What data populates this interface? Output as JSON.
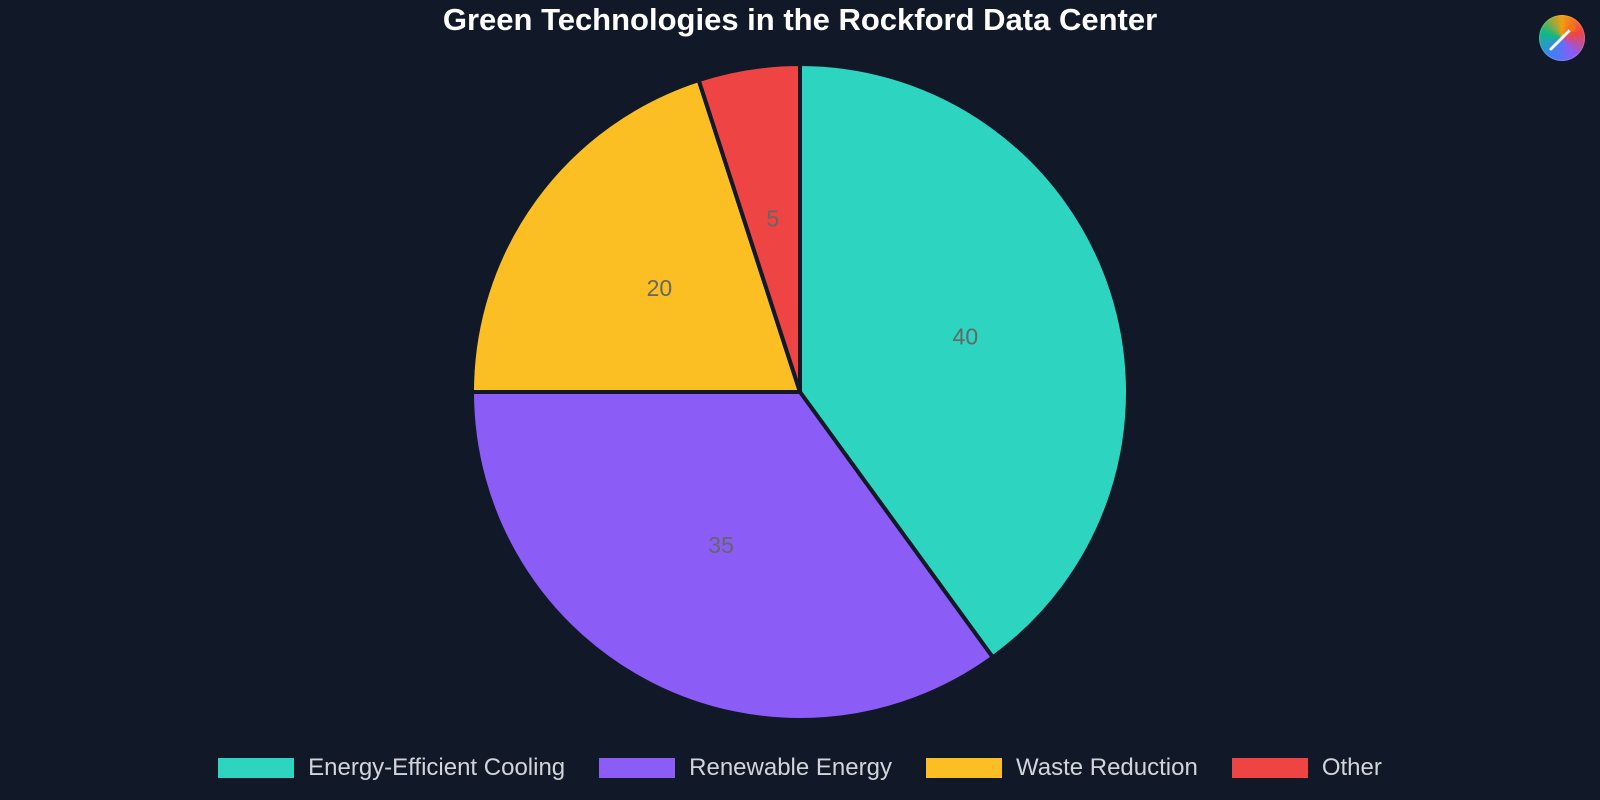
{
  "chart_data": {
    "type": "pie",
    "title": "Green Technologies in the Rockford Data Center",
    "categories": [
      "Energy-Efficient Cooling",
      "Renewable Energy",
      "Waste Reduction",
      "Other"
    ],
    "values": [
      40,
      35,
      20,
      5
    ],
    "colors": [
      "#2dd4bf",
      "#8b5cf6",
      "#fbbf24",
      "#ef4444"
    ],
    "legend_position": "bottom",
    "slice_border_color": "#111827",
    "label_color": "#666666"
  },
  "logo": {
    "icon": "brush-icon"
  }
}
